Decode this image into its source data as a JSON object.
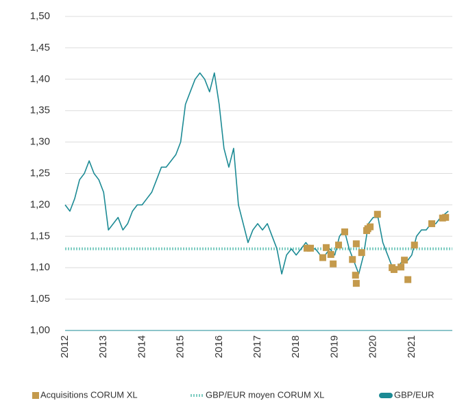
{
  "chart_data": {
    "type": "line",
    "xlim": [
      2012,
      2022
    ],
    "xticks": [
      2012,
      2013,
      2014,
      2015,
      2016,
      2017,
      2018,
      2019,
      2020,
      2021
    ],
    "ylim": [
      1.0,
      1.5
    ],
    "yticks": [
      {
        "value": 1.0,
        "label": "1,00"
      },
      {
        "value": 1.05,
        "label": "1,05"
      },
      {
        "value": 1.1,
        "label": "1,10"
      },
      {
        "value": 1.15,
        "label": "1,15"
      },
      {
        "value": 1.2,
        "label": "1,20"
      },
      {
        "value": 1.25,
        "label": "1,25"
      },
      {
        "value": 1.3,
        "label": "1,30"
      },
      {
        "value": 1.35,
        "label": "1,35"
      },
      {
        "value": 1.4,
        "label": "1,40"
      },
      {
        "value": 1.45,
        "label": "1,45"
      },
      {
        "value": 1.5,
        "label": "1,50"
      }
    ],
    "grid": true,
    "legend": "bottom",
    "series": [
      {
        "name": "Acquisitions CORUM XL",
        "type": "scatter",
        "color": "#c49a4c",
        "x": [
          2018.28,
          2018.37,
          2018.69,
          2018.78,
          2018.9,
          2018.96,
          2019.1,
          2019.26,
          2019.46,
          2019.56,
          2019.54,
          2019.56,
          2019.7,
          2019.83,
          2019.86,
          2019.92,
          2020.11,
          2020.49,
          2020.54,
          2020.72,
          2020.81,
          2020.9,
          2021.07,
          2021.52,
          2021.8,
          2021.88
        ],
        "values": [
          1.131,
          1.131,
          1.116,
          1.132,
          1.121,
          1.106,
          1.136,
          1.157,
          1.113,
          1.138,
          1.088,
          1.075,
          1.124,
          1.159,
          1.162,
          1.165,
          1.185,
          1.1,
          1.097,
          1.101,
          1.112,
          1.081,
          1.136,
          1.17,
          1.179,
          1.18
        ]
      },
      {
        "name": "GBP/EUR moyen CORUM XL",
        "type": "hline",
        "color": "#7fcdc2",
        "values": [
          1.13
        ]
      },
      {
        "name": "GBP/EUR",
        "type": "line",
        "color": "#1b8a94",
        "x": [
          2012,
          2012.125,
          2012.25,
          2012.375,
          2012.5,
          2012.625,
          2012.75,
          2012.875,
          2013,
          2013.125,
          2013.25,
          2013.375,
          2013.5,
          2013.625,
          2013.75,
          2013.875,
          2014,
          2014.125,
          2014.25,
          2014.375,
          2014.5,
          2014.625,
          2014.75,
          2014.875,
          2015,
          2015.125,
          2015.25,
          2015.375,
          2015.5,
          2015.625,
          2015.75,
          2015.875,
          2016,
          2016.125,
          2016.25,
          2016.375,
          2016.5,
          2016.625,
          2016.75,
          2016.875,
          2017,
          2017.125,
          2017.25,
          2017.375,
          2017.5,
          2017.625,
          2017.75,
          2017.875,
          2018,
          2018.125,
          2018.25,
          2018.375,
          2018.5,
          2018.625,
          2018.75,
          2018.875,
          2019,
          2019.125,
          2019.25,
          2019.375,
          2019.5,
          2019.625,
          2019.75,
          2019.875,
          2020,
          2020.125,
          2020.25,
          2020.375,
          2020.5,
          2020.625,
          2020.75,
          2020.875,
          2021,
          2021.125,
          2021.25,
          2021.375,
          2021.5,
          2021.625,
          2021.75,
          2021.95
        ],
        "values": [
          1.2,
          1.19,
          1.21,
          1.24,
          1.25,
          1.27,
          1.25,
          1.24,
          1.22,
          1.16,
          1.17,
          1.18,
          1.16,
          1.17,
          1.19,
          1.2,
          1.2,
          1.21,
          1.22,
          1.24,
          1.26,
          1.26,
          1.27,
          1.28,
          1.3,
          1.36,
          1.38,
          1.4,
          1.41,
          1.4,
          1.38,
          1.41,
          1.36,
          1.29,
          1.26,
          1.29,
          1.2,
          1.17,
          1.14,
          1.16,
          1.17,
          1.16,
          1.17,
          1.15,
          1.13,
          1.09,
          1.12,
          1.13,
          1.12,
          1.13,
          1.14,
          1.13,
          1.13,
          1.12,
          1.12,
          1.13,
          1.12,
          1.15,
          1.16,
          1.13,
          1.11,
          1.09,
          1.12,
          1.17,
          1.18,
          1.18,
          1.14,
          1.12,
          1.1,
          1.1,
          1.11,
          1.11,
          1.12,
          1.15,
          1.16,
          1.16,
          1.17,
          1.17,
          1.18,
          1.19
        ]
      }
    ]
  }
}
